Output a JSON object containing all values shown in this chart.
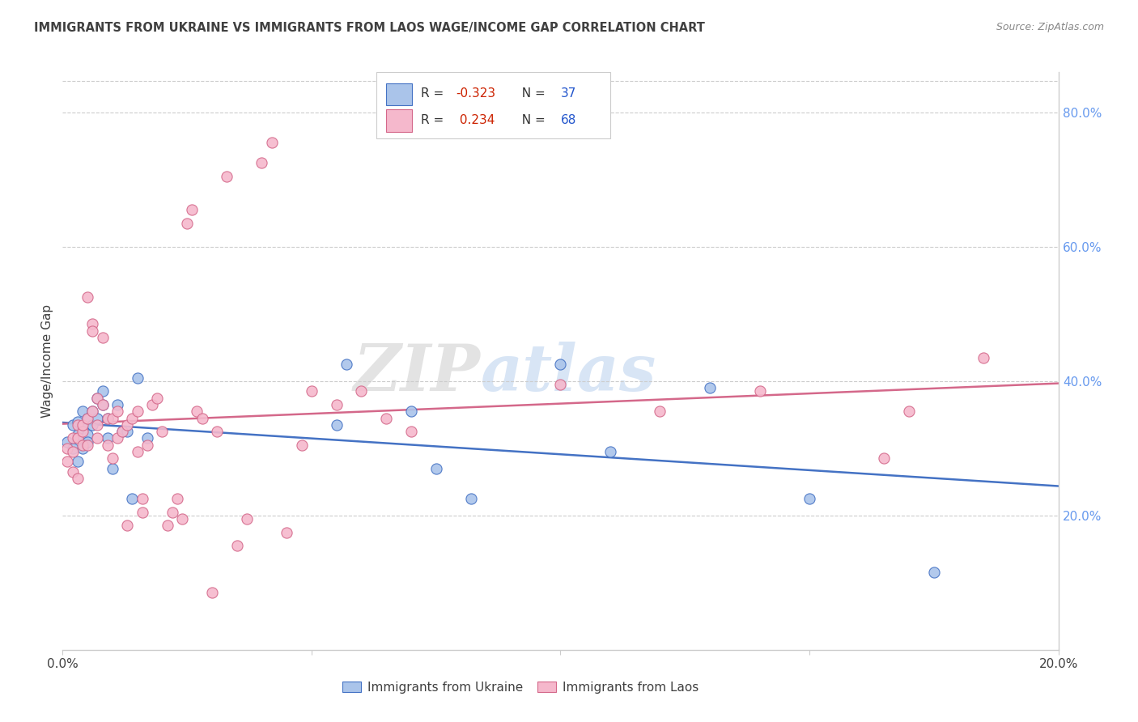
{
  "title": "IMMIGRANTS FROM UKRAINE VS IMMIGRANTS FROM LAOS WAGE/INCOME GAP CORRELATION CHART",
  "source": "Source: ZipAtlas.com",
  "ylabel": "Wage/Income Gap",
  "right_yticks": [
    0.2,
    0.4,
    0.6,
    0.8
  ],
  "right_yticklabels": [
    "20.0%",
    "40.0%",
    "60.0%",
    "80.0%"
  ],
  "ukraine_color": "#aac4ea",
  "laos_color": "#f5b8cc",
  "ukraine_line_color": "#4472c4",
  "laos_line_color": "#d4688a",
  "R_ukraine": -0.323,
  "N_ukraine": 37,
  "R_laos": 0.234,
  "N_laos": 68,
  "ukraine_label": "Immigrants from Ukraine",
  "laos_label": "Immigrants from Laos",
  "xmin": 0.0,
  "xmax": 0.2,
  "ymin": 0.0,
  "ymax": 0.86,
  "ukraine_x": [
    0.001,
    0.002,
    0.002,
    0.003,
    0.003,
    0.003,
    0.004,
    0.004,
    0.004,
    0.005,
    0.005,
    0.005,
    0.006,
    0.006,
    0.007,
    0.007,
    0.008,
    0.008,
    0.009,
    0.009,
    0.01,
    0.011,
    0.012,
    0.013,
    0.014,
    0.015,
    0.017,
    0.055,
    0.057,
    0.07,
    0.075,
    0.082,
    0.1,
    0.11,
    0.13,
    0.15,
    0.175
  ],
  "ukraine_y": [
    0.31,
    0.335,
    0.3,
    0.34,
    0.32,
    0.28,
    0.355,
    0.33,
    0.3,
    0.345,
    0.32,
    0.31,
    0.355,
    0.335,
    0.375,
    0.345,
    0.365,
    0.385,
    0.345,
    0.315,
    0.27,
    0.365,
    0.325,
    0.325,
    0.225,
    0.405,
    0.315,
    0.335,
    0.425,
    0.355,
    0.27,
    0.225,
    0.425,
    0.295,
    0.39,
    0.225,
    0.115
  ],
  "laos_x": [
    0.001,
    0.001,
    0.002,
    0.002,
    0.002,
    0.003,
    0.003,
    0.003,
    0.004,
    0.004,
    0.004,
    0.005,
    0.005,
    0.005,
    0.006,
    0.006,
    0.006,
    0.007,
    0.007,
    0.007,
    0.008,
    0.008,
    0.009,
    0.009,
    0.01,
    0.01,
    0.011,
    0.011,
    0.012,
    0.013,
    0.013,
    0.014,
    0.015,
    0.015,
    0.016,
    0.016,
    0.017,
    0.018,
    0.019,
    0.02,
    0.021,
    0.022,
    0.023,
    0.024,
    0.025,
    0.026,
    0.027,
    0.028,
    0.03,
    0.031,
    0.033,
    0.035,
    0.037,
    0.04,
    0.042,
    0.045,
    0.048,
    0.05,
    0.055,
    0.06,
    0.065,
    0.07,
    0.1,
    0.12,
    0.14,
    0.165,
    0.17,
    0.185
  ],
  "laos_y": [
    0.28,
    0.3,
    0.315,
    0.295,
    0.265,
    0.335,
    0.315,
    0.255,
    0.325,
    0.305,
    0.335,
    0.525,
    0.345,
    0.305,
    0.485,
    0.475,
    0.355,
    0.375,
    0.335,
    0.315,
    0.365,
    0.465,
    0.305,
    0.345,
    0.345,
    0.285,
    0.315,
    0.355,
    0.325,
    0.335,
    0.185,
    0.345,
    0.355,
    0.295,
    0.205,
    0.225,
    0.305,
    0.365,
    0.375,
    0.325,
    0.185,
    0.205,
    0.225,
    0.195,
    0.635,
    0.655,
    0.355,
    0.345,
    0.085,
    0.325,
    0.705,
    0.155,
    0.195,
    0.725,
    0.755,
    0.175,
    0.305,
    0.385,
    0.365,
    0.385,
    0.345,
    0.325,
    0.395,
    0.355,
    0.385,
    0.285,
    0.355,
    0.435
  ],
  "watermark_zip": "ZIP",
  "watermark_atlas": "atlas",
  "background_color": "#ffffff",
  "grid_color": "#cccccc",
  "title_color": "#404040",
  "source_color": "#888888",
  "right_tick_color": "#6699ee"
}
